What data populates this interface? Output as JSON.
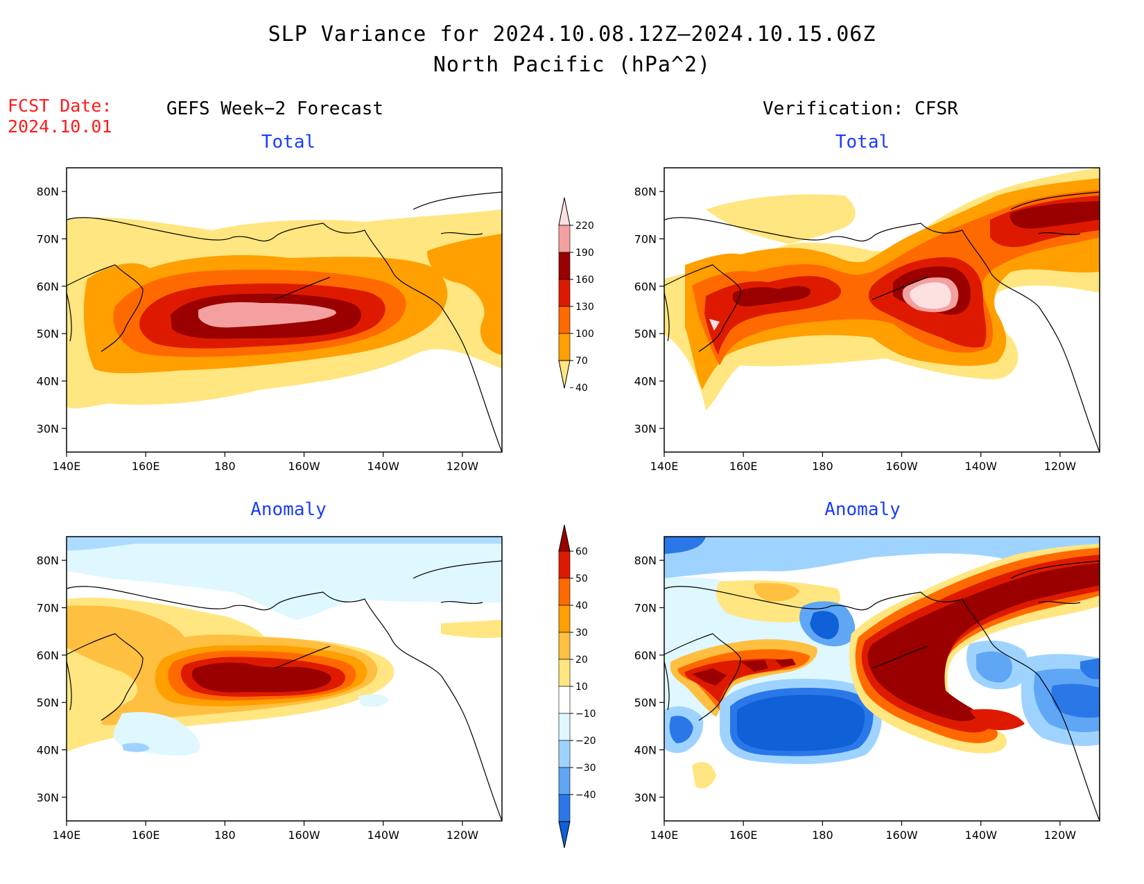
{
  "header": {
    "title_line1": "SLP Variance for 2024.10.08.12Z–2024.10.15.06Z",
    "title_line2": "North Pacific (hPa^2)",
    "fcst_label": "FCST Date:",
    "fcst_date": "2024.10.01",
    "left_column_title": "GEFS Week−2 Forecast",
    "right_column_title": "Verification: CFSR"
  },
  "panels": [
    {
      "id": "fcst-total",
      "subtitle": "Total",
      "field": "total"
    },
    {
      "id": "verif-total",
      "subtitle": "Total",
      "field": "total"
    },
    {
      "id": "fcst-anomaly",
      "subtitle": "Anomaly",
      "field": "anomaly"
    },
    {
      "id": "verif-anomaly",
      "subtitle": "Anomaly",
      "field": "anomaly"
    }
  ],
  "axes": {
    "lon_ticks": [
      "140E",
      "160E",
      "180",
      "160W",
      "140W",
      "120W"
    ],
    "lat_ticks": [
      "80N",
      "70N",
      "60N",
      "50N",
      "40N",
      "30N"
    ],
    "lon_range": [
      140,
      250
    ],
    "lat_range": [
      25,
      85
    ]
  },
  "colorbars": {
    "total": {
      "levels": [
        "220",
        "190",
        "160",
        "130",
        "100",
        "70",
        "40"
      ],
      "colors": [
        "#fde0e0",
        "#f4a0a0",
        "#9a0000",
        "#dd1a00",
        "#ff6a00",
        "#ff9f00",
        "#ffe680"
      ]
    },
    "anomaly": {
      "levels": [
        "60",
        "50",
        "40",
        "30",
        "20",
        "10",
        "−10",
        "−20",
        "−30",
        "−40"
      ],
      "colors": [
        "#9a0000",
        "#dd1a00",
        "#ff6a00",
        "#ff9f00",
        "#ffbf40",
        "#ffe680",
        "#ffffff",
        "#dff7ff",
        "#9fd3ff",
        "#5fa6f5",
        "#2a78e8",
        "#1060d8"
      ]
    }
  }
}
